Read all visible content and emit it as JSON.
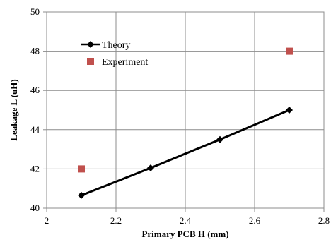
{
  "chart_data": {
    "type": "line",
    "title": "",
    "xlabel": "Primary PCB H (mm)",
    "ylabel": "Leakage L (uH)",
    "xlim": [
      2,
      2.8
    ],
    "ylim": [
      40,
      50
    ],
    "x_ticks": [
      "2",
      "2.2",
      "2.4",
      "2.6",
      "2.8"
    ],
    "y_ticks": [
      "40",
      "42",
      "44",
      "46",
      "48",
      "50"
    ],
    "grid": true,
    "legend_position": "top-left",
    "series": [
      {
        "name": "Theory",
        "style": "line-diamond",
        "color": "#000000",
        "x": [
          2.1,
          2.3,
          2.5,
          2.7
        ],
        "y": [
          40.65,
          42.05,
          43.5,
          45.0
        ]
      },
      {
        "name": "Experiment",
        "style": "square",
        "color": "#c0504d",
        "x": [
          2.1,
          2.7
        ],
        "y": [
          42.0,
          48.0
        ]
      }
    ]
  }
}
